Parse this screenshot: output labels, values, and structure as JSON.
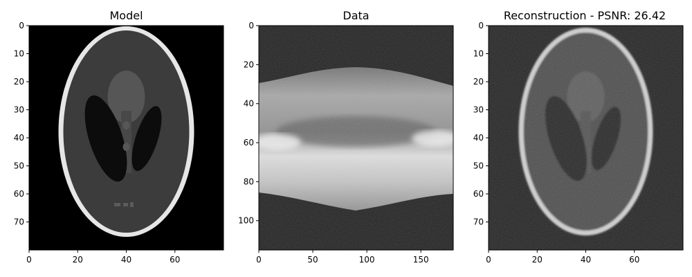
{
  "chart_data": [
    {
      "type": "heatmap",
      "title": "Model",
      "colormap": "gray",
      "content": "Shepp-Logan phantom",
      "x_range": [
        0,
        80
      ],
      "y_range": [
        0,
        80
      ],
      "x_ticks": [
        0,
        20,
        40,
        60
      ],
      "y_ticks": [
        0,
        10,
        20,
        30,
        40,
        50,
        60,
        70
      ],
      "y_inverted": true
    },
    {
      "type": "heatmap",
      "title": "Data",
      "colormap": "gray",
      "content": "sinogram",
      "x_range": [
        0,
        180
      ],
      "y_range": [
        0,
        115
      ],
      "x_ticks": [
        0,
        50,
        100,
        150
      ],
      "y_ticks": [
        0,
        20,
        40,
        60,
        80,
        100
      ],
      "y_inverted": true
    },
    {
      "type": "heatmap",
      "title": "Reconstruction - PSNR: 26.42",
      "colormap": "gray",
      "content": "noisy reconstruction of Shepp-Logan phantom",
      "psnr": 26.42,
      "x_range": [
        0,
        80
      ],
      "y_range": [
        0,
        80
      ],
      "x_ticks": [
        0,
        20,
        40,
        60
      ],
      "y_ticks": [
        0,
        10,
        20,
        30,
        40,
        50,
        60,
        70
      ],
      "y_inverted": true
    }
  ]
}
